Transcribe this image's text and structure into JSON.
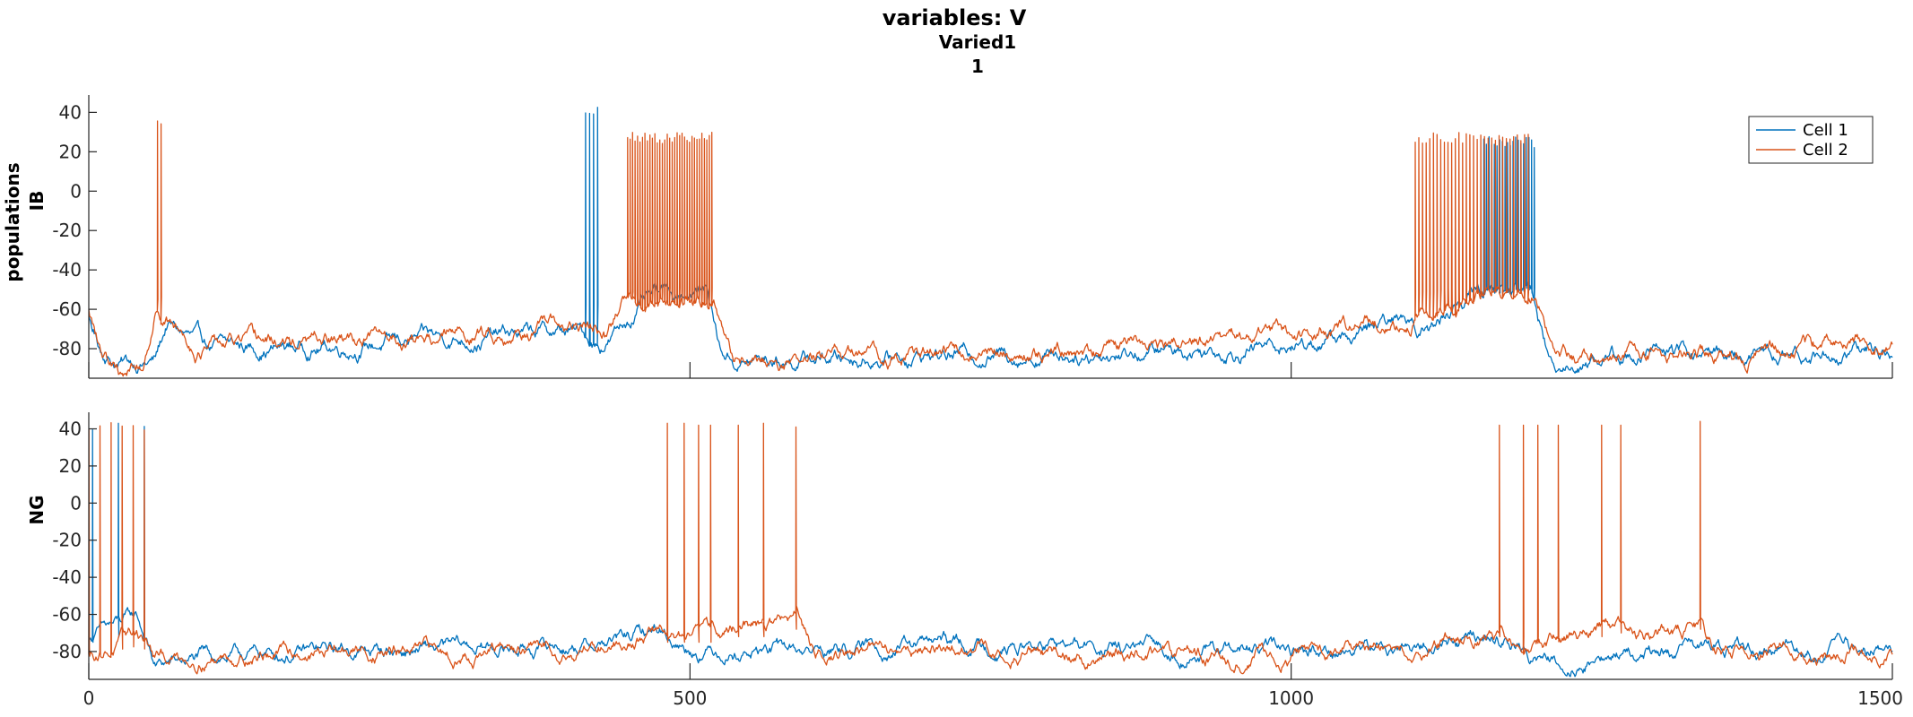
{
  "figure": {
    "title": "variables: V",
    "subtitle_line1": "Varied1",
    "subtitle_line2": "1",
    "colors": {
      "series1": "#0072BD",
      "series2": "#D95319",
      "axis": "#262626",
      "background": "#ffffff"
    }
  },
  "chart_data": [
    {
      "type": "line",
      "panel": "IB",
      "ylabel_line1": "populations",
      "ylabel_line2": "IB",
      "xlim": [
        0,
        1500
      ],
      "ylim": [
        -95,
        47
      ],
      "yticks": [
        40,
        20,
        0,
        -20,
        -40,
        -60,
        -80
      ],
      "xticks": [
        0,
        500,
        1000,
        1500
      ],
      "xtick_labels_shown": false,
      "legend": {
        "position": "top-right",
        "entries": [
          "Cell 1",
          "Cell 2"
        ]
      },
      "series": [
        {
          "name": "Cell 1",
          "color": "#0072BD",
          "baseline": [
            [
              0,
              -65
            ],
            [
              10,
              -80
            ],
            [
              25,
              -87
            ],
            [
              55,
              -86
            ],
            [
              65,
              -68
            ],
            [
              100,
              -80
            ],
            [
              200,
              -79
            ],
            [
              300,
              -75
            ],
            [
              380,
              -72
            ],
            [
              410,
              -72
            ],
            [
              415,
              -75
            ],
            [
              425,
              -78
            ],
            [
              440,
              -71
            ],
            [
              460,
              -57
            ],
            [
              500,
              -50
            ],
            [
              515,
              -50
            ],
            [
              525,
              -80
            ],
            [
              540,
              -87
            ],
            [
              600,
              -85
            ],
            [
              700,
              -83
            ],
            [
              800,
              -82
            ],
            [
              900,
              -81
            ],
            [
              1000,
              -78
            ],
            [
              1060,
              -73
            ],
            [
              1080,
              -68
            ],
            [
              1100,
              -65
            ],
            [
              1115,
              -70
            ],
            [
              1140,
              -55
            ],
            [
              1160,
              -50
            ],
            [
              1200,
              -50
            ],
            [
              1205,
              -65
            ],
            [
              1215,
              -87
            ],
            [
              1300,
              -82
            ],
            [
              1400,
              -84
            ],
            [
              1500,
              -81
            ]
          ],
          "spikes": [
            {
              "t_start": 413,
              "t_end": 423,
              "count": 4,
              "peak": 44,
              "trough": -58
            },
            {
              "t_start": 1160,
              "t_end": 1202,
              "count": 20,
              "peak": 28,
              "trough": -52
            }
          ]
        },
        {
          "name": "Cell 2",
          "color": "#D95319",
          "baseline": [
            [
              0,
              -60
            ],
            [
              10,
              -82
            ],
            [
              25,
              -93
            ],
            [
              45,
              -88
            ],
            [
              55,
              -60
            ],
            [
              65,
              -65
            ],
            [
              90,
              -80
            ],
            [
              200,
              -77
            ],
            [
              300,
              -73
            ],
            [
              380,
              -70
            ],
            [
              420,
              -70
            ],
            [
              430,
              -76
            ],
            [
              445,
              -56
            ],
            [
              520,
              -50
            ],
            [
              525,
              -65
            ],
            [
              535,
              -87
            ],
            [
              600,
              -85
            ],
            [
              700,
              -83
            ],
            [
              800,
              -81
            ],
            [
              900,
              -79
            ],
            [
              1000,
              -74
            ],
            [
              1060,
              -70
            ],
            [
              1080,
              -66
            ],
            [
              1095,
              -72
            ],
            [
              1110,
              -62
            ],
            [
              1200,
              -50
            ],
            [
              1210,
              -65
            ],
            [
              1220,
              -87
            ],
            [
              1300,
              -82
            ],
            [
              1400,
              -82
            ],
            [
              1500,
              -75
            ]
          ],
          "spikes": [
            {
              "t_start": 57,
              "t_end": 60,
              "count": 2,
              "peak": 40,
              "trough": -55
            },
            {
              "t_start": 448,
              "t_end": 518,
              "count": 35,
              "peak": 30,
              "trough": -52
            },
            {
              "t_start": 1103,
              "t_end": 1197,
              "count": 32,
              "peak": 30,
              "trough": -52
            }
          ]
        }
      ]
    },
    {
      "type": "line",
      "panel": "NG",
      "ylabel_line1": "",
      "ylabel_line2": "NG",
      "xlim": [
        0,
        1500
      ],
      "ylim": [
        -95,
        47
      ],
      "yticks": [
        40,
        20,
        0,
        -20,
        -40,
        -60,
        -80
      ],
      "xticks": [
        0,
        500,
        1000,
        1500
      ],
      "xtick_labels": [
        "0",
        "500",
        "1000",
        "1500"
      ],
      "series": [
        {
          "name": "Cell 1",
          "color": "#0072BD",
          "baseline": [
            [
              0,
              -70
            ],
            [
              20,
              -67
            ],
            [
              40,
              -62
            ],
            [
              48,
              -75
            ],
            [
              55,
              -88
            ],
            [
              100,
              -83
            ],
            [
              200,
              -80
            ],
            [
              300,
              -79
            ],
            [
              400,
              -77
            ],
            [
              450,
              -73
            ],
            [
              475,
              -68
            ],
            [
              490,
              -75
            ],
            [
              500,
              -78
            ],
            [
              600,
              -80
            ],
            [
              700,
              -76
            ],
            [
              800,
              -78
            ],
            [
              900,
              -80
            ],
            [
              1000,
              -80
            ],
            [
              1100,
              -78
            ],
            [
              1170,
              -72
            ],
            [
              1190,
              -80
            ],
            [
              1220,
              -86
            ],
            [
              1300,
              -80
            ],
            [
              1400,
              -78
            ],
            [
              1500,
              -79
            ]
          ],
          "spikes": [
            {
              "t_start": 3,
              "t_end": 46,
              "count": 3,
              "peak": 44,
              "trough": -75
            }
          ]
        },
        {
          "name": "Cell 2",
          "color": "#D95319",
          "baseline": [
            [
              0,
              -80
            ],
            [
              20,
              -78
            ],
            [
              40,
              -70
            ],
            [
              48,
              -75
            ],
            [
              55,
              -85
            ],
            [
              100,
              -82
            ],
            [
              200,
              -80
            ],
            [
              300,
              -81
            ],
            [
              400,
              -79
            ],
            [
              450,
              -72
            ],
            [
              475,
              -68
            ],
            [
              500,
              -73
            ],
            [
              540,
              -66
            ],
            [
              590,
              -62
            ],
            [
              600,
              -80
            ],
            [
              700,
              -78
            ],
            [
              800,
              -82
            ],
            [
              900,
              -82
            ],
            [
              1000,
              -81
            ],
            [
              1100,
              -78
            ],
            [
              1160,
              -70
            ],
            [
              1190,
              -76
            ],
            [
              1230,
              -72
            ],
            [
              1260,
              -68
            ],
            [
              1300,
              -72
            ],
            [
              1340,
              -68
            ],
            [
              1350,
              -80
            ],
            [
              1400,
              -78
            ],
            [
              1500,
              -80
            ]
          ],
          "spikes": [
            {
              "t_start": 0,
              "t_end": 46,
              "count": 6,
              "peak": 44,
              "trough": -80
            },
            {
              "t_start": 481,
              "t_end": 481,
              "count": 1,
              "peak": 43,
              "trough": -75
            },
            {
              "t_start": 495,
              "t_end": 495,
              "count": 1,
              "peak": 43,
              "trough": -75
            },
            {
              "t_start": 507,
              "t_end": 507,
              "count": 1,
              "peak": 42,
              "trough": -75
            },
            {
              "t_start": 517,
              "t_end": 517,
              "count": 1,
              "peak": 42,
              "trough": -75
            },
            {
              "t_start": 540,
              "t_end": 540,
              "count": 1,
              "peak": 42,
              "trough": -72
            },
            {
              "t_start": 561,
              "t_end": 561,
              "count": 1,
              "peak": 43,
              "trough": -72
            },
            {
              "t_start": 588,
              "t_end": 588,
              "count": 1,
              "peak": 41,
              "trough": -68
            },
            {
              "t_start": 1173,
              "t_end": 1173,
              "count": 1,
              "peak": 42,
              "trough": -72
            },
            {
              "t_start": 1193,
              "t_end": 1193,
              "count": 1,
              "peak": 42,
              "trough": -72
            },
            {
              "t_start": 1205,
              "t_end": 1205,
              "count": 1,
              "peak": 42,
              "trough": -72
            },
            {
              "t_start": 1222,
              "t_end": 1222,
              "count": 1,
              "peak": 42,
              "trough": -72
            },
            {
              "t_start": 1258,
              "t_end": 1258,
              "count": 1,
              "peak": 42,
              "trough": -72
            },
            {
              "t_start": 1274,
              "t_end": 1274,
              "count": 1,
              "peak": 42,
              "trough": -70
            },
            {
              "t_start": 1340,
              "t_end": 1340,
              "count": 1,
              "peak": 44,
              "trough": -68
            }
          ]
        }
      ]
    }
  ]
}
